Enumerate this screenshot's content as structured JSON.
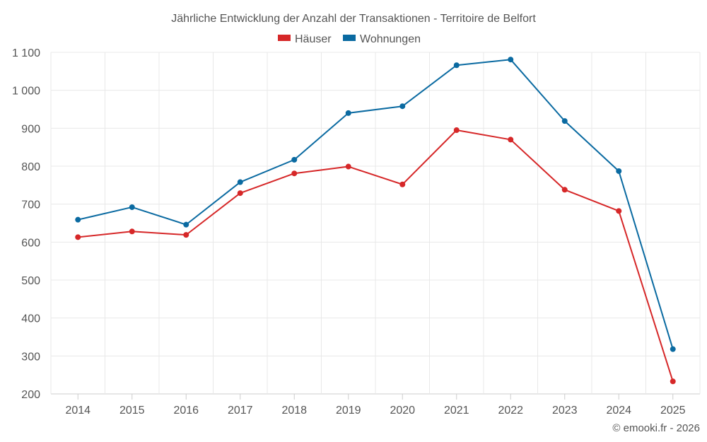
{
  "chart_data": {
    "type": "line",
    "title": "Jährliche Entwicklung der Anzahl der Transaktionen - Territoire de Belfort",
    "categories": [
      "2014",
      "2015",
      "2016",
      "2017",
      "2018",
      "2019",
      "2020",
      "2021",
      "2022",
      "2023",
      "2024",
      "2025"
    ],
    "series": [
      {
        "name": "Häuser",
        "color": "#d62728",
        "values": [
          613,
          628,
          619,
          729,
          781,
          799,
          752,
          895,
          870,
          738,
          682,
          233
        ]
      },
      {
        "name": "Wohnungen",
        "color": "#0a6aa1",
        "values": [
          659,
          692,
          646,
          758,
          817,
          940,
          958,
          1066,
          1081,
          919,
          787,
          318
        ]
      }
    ],
    "ylim": [
      200,
      1100
    ],
    "yticks": [
      200,
      300,
      400,
      500,
      600,
      700,
      800,
      900,
      1000,
      1100
    ],
    "ytick_labels": [
      "200",
      "300",
      "400",
      "500",
      "600",
      "700",
      "800",
      "900",
      "1 000",
      "1 100"
    ],
    "xlabel": "",
    "ylabel": "",
    "grid": true,
    "legend_position": "top-center"
  },
  "credit": "© emooki.fr - 2026"
}
